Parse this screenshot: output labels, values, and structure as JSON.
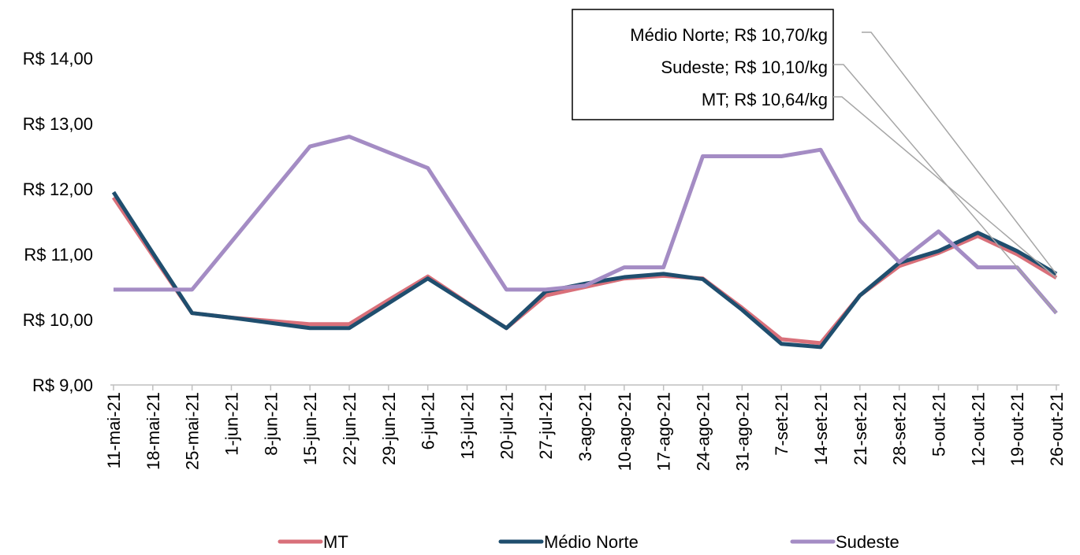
{
  "chart_data": {
    "type": "line",
    "categories": [
      "11-mai-21",
      "18-mai-21",
      "25-mai-21",
      "1-jun-21",
      "8-jun-21",
      "15-jun-21",
      "22-jun-21",
      "29-jun-21",
      "6-jul-21",
      "13-jul-21",
      "20-jul-21",
      "27-jul-21",
      "3-ago-21",
      "10-ago-21",
      "17-ago-21",
      "24-ago-21",
      "31-ago-21",
      "7-set-21",
      "14-set-21",
      "21-set-21",
      "28-set-21",
      "5-out-21",
      "12-out-21",
      "19-out-21",
      "26-out-21"
    ],
    "series": [
      {
        "name": "MT",
        "color": "#d9707a",
        "values": [
          11.87,
          10.98,
          10.1,
          10.03,
          9.98,
          9.93,
          9.93,
          10.3,
          10.66,
          10.26,
          9.87,
          10.37,
          10.5,
          10.63,
          10.67,
          10.63,
          10.18,
          9.7,
          9.64,
          10.37,
          10.82,
          11.02,
          11.28,
          11.0,
          10.64
        ]
      },
      {
        "name": "Médio Norte",
        "color": "#1f4e6e",
        "values": [
          11.95,
          11.02,
          10.1,
          10.03,
          9.95,
          9.87,
          9.87,
          10.25,
          10.63,
          10.25,
          9.87,
          10.43,
          10.55,
          10.65,
          10.7,
          10.62,
          10.15,
          9.63,
          9.58,
          10.37,
          10.87,
          11.05,
          11.33,
          11.05,
          10.7
        ]
      },
      {
        "name": "Sudeste",
        "color": "#a48cc4",
        "values": [
          10.46,
          10.46,
          10.46,
          11.19,
          11.92,
          12.65,
          12.8,
          12.56,
          12.32,
          11.39,
          10.46,
          10.46,
          10.52,
          10.8,
          10.8,
          12.5,
          12.5,
          12.5,
          12.6,
          11.52,
          10.88,
          11.35,
          10.8,
          10.8,
          10.1
        ]
      }
    ],
    "ylim": [
      9,
      14.5
    ],
    "yticks": [
      {
        "value": 9,
        "label": "R$ 9,00"
      },
      {
        "value": 10,
        "label": "R$ 10,00"
      },
      {
        "value": 11,
        "label": "R$ 11,00"
      },
      {
        "value": 12,
        "label": "R$ 12,00"
      },
      {
        "value": 13,
        "label": "R$ 13,00"
      },
      {
        "value": 14,
        "label": "R$ 14,00"
      }
    ],
    "grid": false,
    "legend": "bottom",
    "annotations": [
      {
        "text": "Médio Norte; R$ 10,70/kg",
        "series": 1
      },
      {
        "text": "Sudeste; R$ 10,10/kg",
        "series": 2
      },
      {
        "text": "MT; R$ 10,64/kg",
        "series": 0
      }
    ]
  }
}
